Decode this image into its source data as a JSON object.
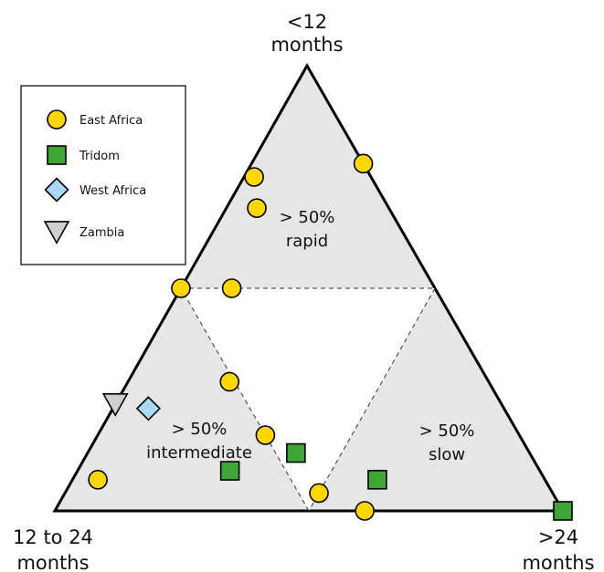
{
  "chart_data": {
    "type": "scatter",
    "subtype": "ternary",
    "vertices": {
      "top": [
        "<12",
        "months"
      ],
      "left": [
        "12 to 24",
        "months"
      ],
      "right": [
        ">24",
        "months"
      ]
    },
    "regions": [
      {
        "id": "rapid",
        "lines": [
          "> 50%",
          "rapid"
        ]
      },
      {
        "id": "intermediate",
        "lines": [
          "> 50%",
          "intermediate"
        ]
      },
      {
        "id": "slow",
        "lines": [
          "> 50%",
          "slow"
        ]
      }
    ],
    "legend": {
      "placement": "top-left",
      "items": [
        {
          "name": "East Africa",
          "marker": "circle",
          "color": "#ffd700"
        },
        {
          "name": "Tridom",
          "marker": "square",
          "color": "#3fa535"
        },
        {
          "name": "West Africa",
          "marker": "diamond",
          "color": "#a9d8f5"
        },
        {
          "name": "Zambia",
          "marker": "triangle-down",
          "color": "#cfcfcf"
        }
      ]
    },
    "series": [
      {
        "name": "East Africa",
        "points": [
          {
            "top": 0.78,
            "left": 0.0,
            "right": 0.22
          },
          {
            "top": 0.75,
            "left": 0.23,
            "right": 0.02
          },
          {
            "top": 0.68,
            "left": 0.26,
            "right": 0.06
          },
          {
            "top": 0.5,
            "left": 0.5,
            "right": 0.0
          },
          {
            "top": 0.5,
            "left": 0.4,
            "right": 0.1
          },
          {
            "top": 0.29,
            "left": 0.51,
            "right": 0.2
          },
          {
            "top": 0.17,
            "left": 0.5,
            "right": 0.33
          },
          {
            "top": 0.07,
            "left": 0.88,
            "right": 0.05
          },
          {
            "top": 0.04,
            "left": 0.46,
            "right": 0.5
          },
          {
            "top": 0.0,
            "left": 0.39,
            "right": 0.61
          }
        ]
      },
      {
        "name": "Tridom",
        "points": [
          {
            "top": 0.13,
            "left": 0.46,
            "right": 0.41
          },
          {
            "top": 0.09,
            "left": 0.61,
            "right": 0.3
          },
          {
            "top": 0.07,
            "left": 0.33,
            "right": 0.6
          },
          {
            "top": 0.0,
            "left": 0.0,
            "right": 1.0
          }
        ]
      },
      {
        "name": "West Africa",
        "points": [
          {
            "top": 0.23,
            "left": 0.7,
            "right": 0.07
          }
        ]
      },
      {
        "name": "Zambia",
        "points": [
          {
            "top": 0.24,
            "left": 0.76,
            "right": 0.0
          }
        ]
      }
    ]
  }
}
